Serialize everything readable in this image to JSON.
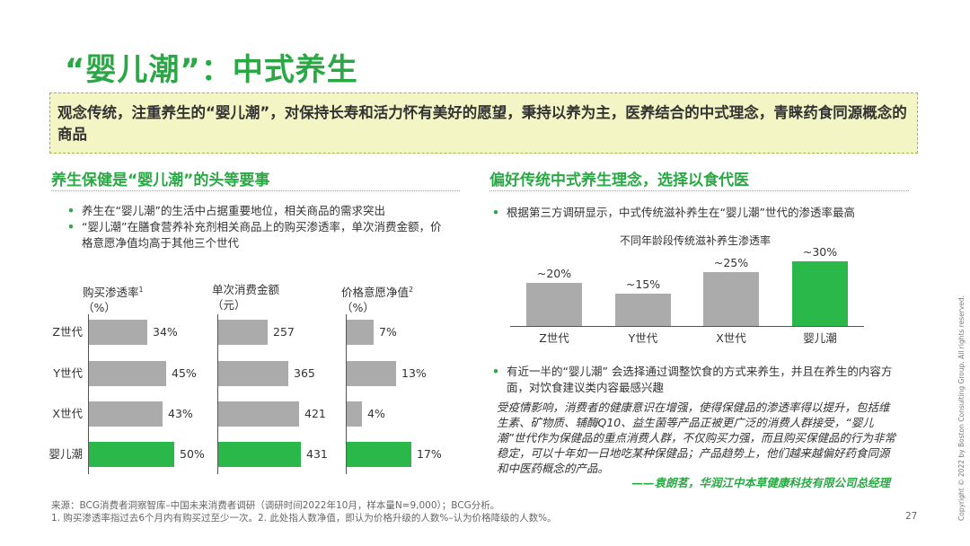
{
  "title": "“婴儿潮”：中式养生",
  "highlight_text": "观念传统，注重养生的“婴儿潮”，对保持长寿和活力怀有美好的愿望，秉持以养为主，医养结合的中式理念，青睐药食同源概念的商品",
  "left": {
    "heading": "养生保健是“婴儿潮”的头等要事",
    "bullets": [
      "养生在“婴儿潮”的生活中占据重要地位，相关商品的需求突出",
      "“婴儿潮”在膳食营养补充剂相关商品上的购买渗透率，单次消费金额，价格意愿净值均高于其他三个世代"
    ]
  },
  "right": {
    "heading": "偏好传统中式养生理念，选择以食代医",
    "bullet1": "根据第三方调研显示，中式传统滋补养生在“婴儿潮”世代的渗透率最高",
    "bullet2": "有近一半的“婴儿潮” 会选择通过调整饮食的方式来养生，并且在养生的内容方面，对饮食建议类内容最感兴趣",
    "quote": "受疫情影响，消费者的健康意识在增强，使得保健品的渗透率得以提升，包括维生素、矿物质、辅酶Q10、益生菌等产品正被更广泛的消费人群接受，“婴儿潮”世代作为保健品的重点消费人群，不仅购买力强，而且购买保健品的行为非常稳定，可以十年如一日地吃某种保健品；产品趋势上，他们越来越偏好药食同源和中医药概念的产品。",
    "quote_attribution": "——袁朗茗，华润江中本草健康科技有限公司总经理"
  },
  "footnotes": [
    "来源：BCG消费者洞察智库–中国未来消费者调研（调研时间2022年10月，样本量N=9,000）；BCG分析。",
    "1. 购买渗透率指过去6个月内有购买过至少一次。2. 此处指人数净值，即认为价格升级的人数%–认为价格降级的人数%。"
  ],
  "page_number": "27",
  "copyright": "Copyright © 2022 by Boston Consulting Group. All rights reserved.",
  "colors": {
    "accent_green": "#2aa845",
    "highlight_bar": "#2bb84a",
    "gray_bar": "#ababab",
    "highlight_box": "#f4f5c4"
  },
  "chart_data": [
    {
      "type": "bar",
      "orientation": "horizontal",
      "title": "购买渗透率",
      "title_superscript": "1",
      "unit": "（%）",
      "categories": [
        "Z世代",
        "Y世代",
        "X世代",
        "婴儿潮"
      ],
      "values": [
        34,
        45,
        43,
        50
      ],
      "labels": [
        "34%",
        "45%",
        "43%",
        "50%"
      ],
      "highlight_index": 3,
      "xlim": [
        0,
        50
      ]
    },
    {
      "type": "bar",
      "orientation": "horizontal",
      "title": "单次消费金额",
      "unit": "（元）",
      "categories": [
        "Z世代",
        "Y世代",
        "X世代",
        "婴儿潮"
      ],
      "values": [
        257,
        365,
        421,
        431
      ],
      "labels": [
        "257",
        "365",
        "421",
        "431"
      ],
      "highlight_index": 3,
      "xlim": [
        0,
        431
      ]
    },
    {
      "type": "bar",
      "orientation": "horizontal",
      "title": "价格意愿净值",
      "title_superscript": "2",
      "unit": "（%）",
      "categories": [
        "Z世代",
        "Y世代",
        "X世代",
        "婴儿潮"
      ],
      "values": [
        7,
        13,
        4,
        17
      ],
      "labels": [
        "7%",
        "13%",
        "4%",
        "17%"
      ],
      "highlight_index": 3,
      "xlim": [
        0,
        17
      ]
    },
    {
      "type": "bar",
      "orientation": "vertical",
      "title": "不同年龄段传统滋补养生渗透率",
      "categories": [
        "Z世代",
        "Y世代",
        "X世代",
        "婴儿潮"
      ],
      "values": [
        20,
        15,
        25,
        30
      ],
      "labels": [
        "~20%",
        "~15%",
        "~25%",
        "~30%"
      ],
      "highlight_index": 3,
      "ylim": [
        0,
        30
      ]
    }
  ]
}
